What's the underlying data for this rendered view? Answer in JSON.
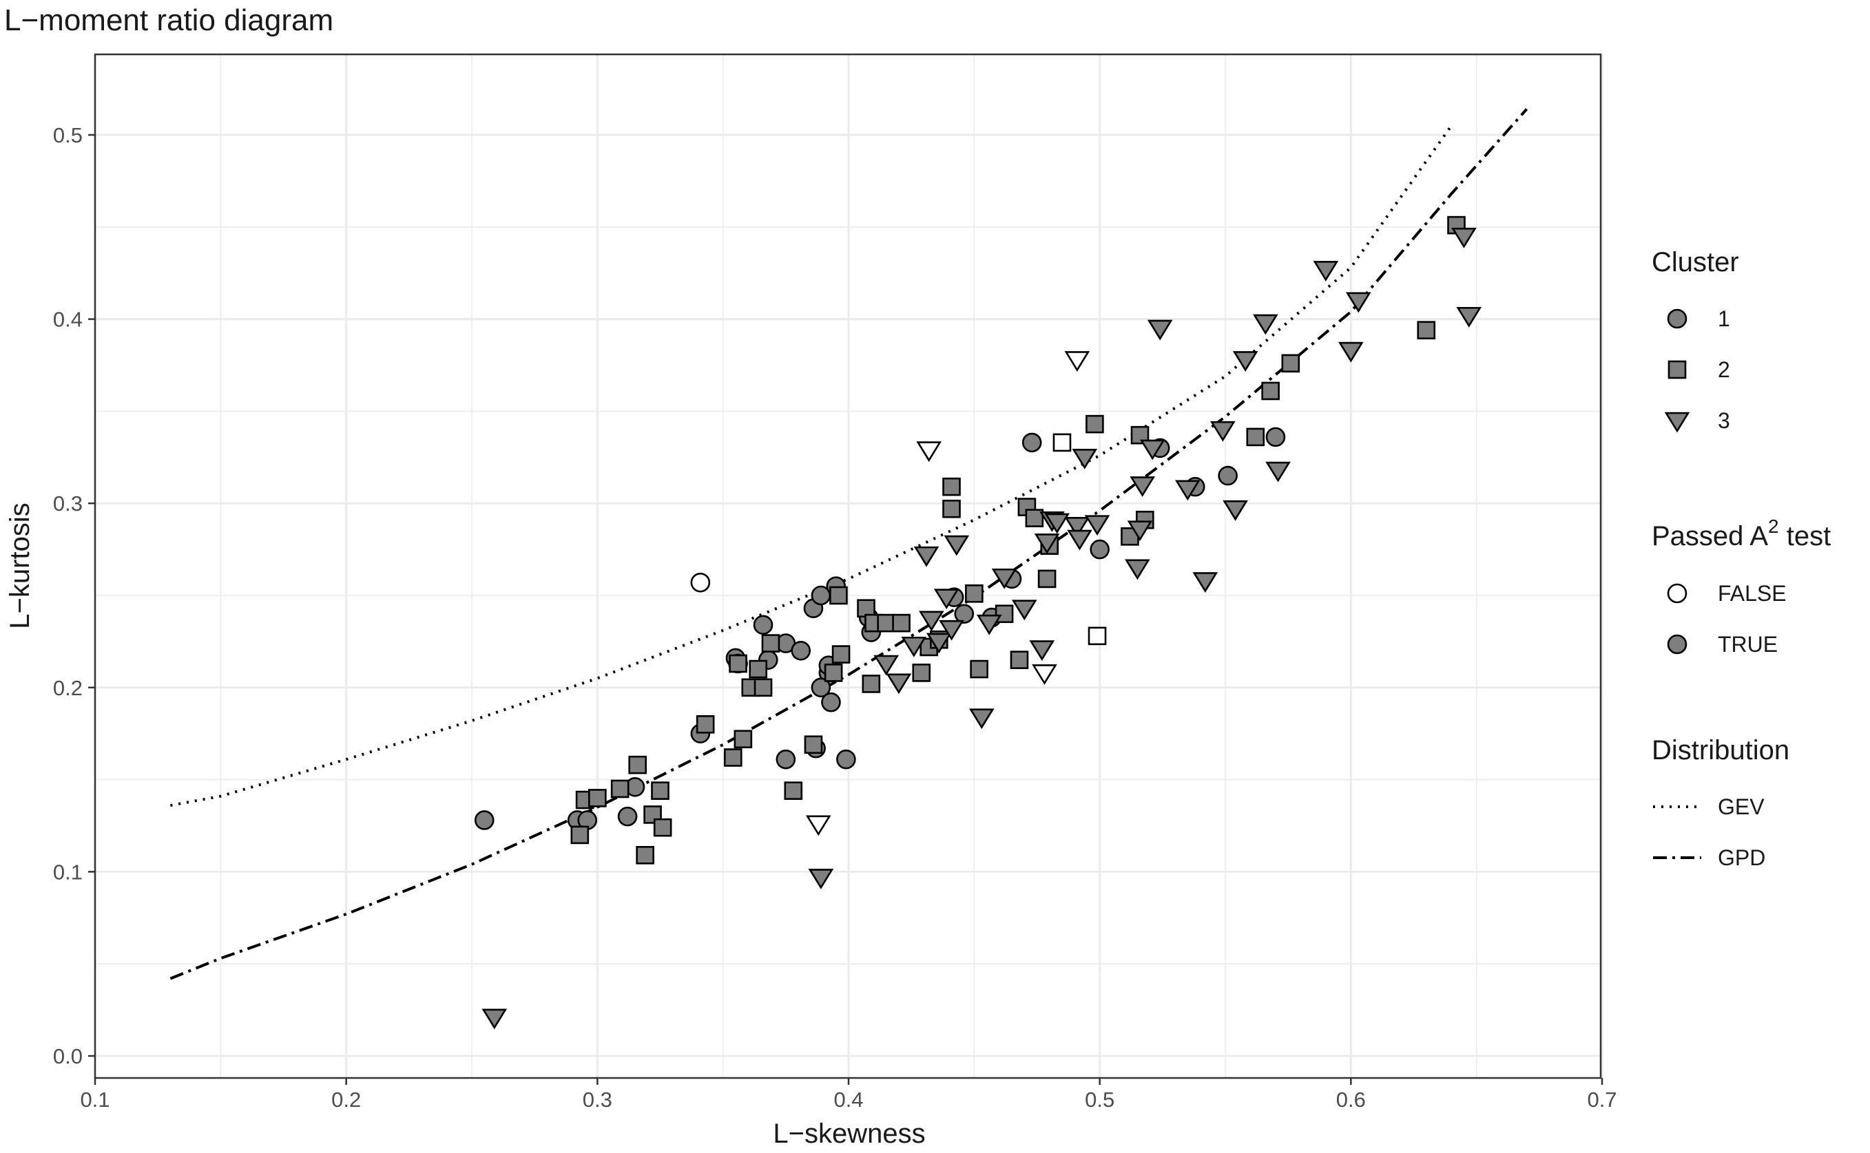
{
  "chart_data": {
    "type": "scatter",
    "title": "L−moment ratio diagram",
    "xlabel": "L−skewness",
    "ylabel": "L−kurtosis",
    "xlim": [
      0.1,
      0.7
    ],
    "ylim": [
      0.0,
      0.5
    ],
    "x_ticks": [
      "0.1",
      "0.2",
      "0.3",
      "0.4",
      "0.5",
      "0.6",
      "0.7"
    ],
    "y_ticks": [
      "0.0",
      "0.1",
      "0.2",
      "0.3",
      "0.4",
      "0.5"
    ],
    "grid": true,
    "legend_position": "right",
    "legend": {
      "cluster": {
        "title": "Cluster",
        "items": [
          {
            "label": "1",
            "shape": "circle"
          },
          {
            "label": "2",
            "shape": "square"
          },
          {
            "label": "3",
            "shape": "triangle-down"
          }
        ]
      },
      "passed": {
        "title_main": "Passed A",
        "title_sup": "2",
        "title_tail": " test",
        "items": [
          {
            "label": "FALSE",
            "fill": "#ffffff"
          },
          {
            "label": "TRUE",
            "fill": "#7f7f7f"
          }
        ]
      },
      "distribution": {
        "title": "Distribution",
        "items": [
          {
            "label": "GEV",
            "dash": "dotted"
          },
          {
            "label": "GPD",
            "dash": "dotdash"
          }
        ]
      }
    },
    "colors": {
      "filled": "#7f7f7f",
      "open": "#ffffff",
      "stroke": "#000000",
      "grid": "#ebebeb"
    },
    "curves": [
      {
        "name": "GEV",
        "dash": "dotted",
        "points": [
          [
            0.13,
            0.136
          ],
          [
            0.15,
            0.141
          ],
          [
            0.2,
            0.161
          ],
          [
            0.25,
            0.182
          ],
          [
            0.3,
            0.205
          ],
          [
            0.35,
            0.231
          ],
          [
            0.4,
            0.259
          ],
          [
            0.45,
            0.291
          ],
          [
            0.5,
            0.326
          ],
          [
            0.55,
            0.369
          ],
          [
            0.6,
            0.428
          ],
          [
            0.64,
            0.505
          ]
        ]
      },
      {
        "name": "GPD",
        "dash": "dotdash",
        "points": [
          [
            0.13,
            0.042
          ],
          [
            0.15,
            0.053
          ],
          [
            0.2,
            0.077
          ],
          [
            0.25,
            0.104
          ],
          [
            0.3,
            0.135
          ],
          [
            0.35,
            0.169
          ],
          [
            0.4,
            0.207
          ],
          [
            0.45,
            0.249
          ],
          [
            0.5,
            0.296
          ],
          [
            0.55,
            0.347
          ],
          [
            0.6,
            0.404
          ],
          [
            0.64,
            0.468
          ],
          [
            0.67,
            0.514
          ]
        ]
      }
    ],
    "series": [
      {
        "cluster": "1",
        "shape": "circle",
        "passed": true,
        "points": [
          [
            0.255,
            0.128
          ],
          [
            0.292,
            0.128
          ],
          [
            0.296,
            0.128
          ],
          [
            0.312,
            0.13
          ],
          [
            0.315,
            0.146
          ],
          [
            0.341,
            0.175
          ],
          [
            0.355,
            0.216
          ],
          [
            0.356,
            0.213
          ],
          [
            0.366,
            0.234
          ],
          [
            0.368,
            0.215
          ],
          [
            0.375,
            0.224
          ],
          [
            0.381,
            0.22
          ],
          [
            0.386,
            0.243
          ],
          [
            0.389,
            0.25
          ],
          [
            0.392,
            0.208
          ],
          [
            0.392,
            0.212
          ],
          [
            0.395,
            0.255
          ],
          [
            0.389,
            0.2
          ],
          [
            0.393,
            0.192
          ],
          [
            0.375,
            0.161
          ],
          [
            0.387,
            0.167
          ],
          [
            0.399,
            0.161
          ],
          [
            0.408,
            0.238
          ],
          [
            0.409,
            0.23
          ],
          [
            0.442,
            0.249
          ],
          [
            0.446,
            0.24
          ],
          [
            0.457,
            0.238
          ],
          [
            0.465,
            0.259
          ],
          [
            0.473,
            0.333
          ],
          [
            0.5,
            0.275
          ],
          [
            0.524,
            0.33
          ],
          [
            0.538,
            0.309
          ],
          [
            0.551,
            0.315
          ],
          [
            0.57,
            0.336
          ]
        ]
      },
      {
        "cluster": "1",
        "shape": "circle",
        "passed": false,
        "points": [
          [
            0.341,
            0.257
          ]
        ]
      },
      {
        "cluster": "2",
        "shape": "square",
        "passed": true,
        "points": [
          [
            0.293,
            0.12
          ],
          [
            0.295,
            0.139
          ],
          [
            0.3,
            0.14
          ],
          [
            0.309,
            0.145
          ],
          [
            0.316,
            0.158
          ],
          [
            0.319,
            0.109
          ],
          [
            0.322,
            0.131
          ],
          [
            0.325,
            0.144
          ],
          [
            0.326,
            0.124
          ],
          [
            0.343,
            0.18
          ],
          [
            0.354,
            0.162
          ],
          [
            0.356,
            0.213
          ],
          [
            0.358,
            0.172
          ],
          [
            0.361,
            0.2
          ],
          [
            0.364,
            0.21
          ],
          [
            0.366,
            0.2
          ],
          [
            0.369,
            0.224
          ],
          [
            0.378,
            0.144
          ],
          [
            0.386,
            0.169
          ],
          [
            0.394,
            0.208
          ],
          [
            0.396,
            0.25
          ],
          [
            0.397,
            0.218
          ],
          [
            0.407,
            0.243
          ],
          [
            0.409,
            0.202
          ],
          [
            0.41,
            0.235
          ],
          [
            0.415,
            0.235
          ],
          [
            0.421,
            0.235
          ],
          [
            0.429,
            0.208
          ],
          [
            0.432,
            0.222
          ],
          [
            0.436,
            0.226
          ],
          [
            0.441,
            0.309
          ],
          [
            0.441,
            0.297
          ],
          [
            0.45,
            0.251
          ],
          [
            0.452,
            0.21
          ],
          [
            0.462,
            0.24
          ],
          [
            0.468,
            0.215
          ],
          [
            0.471,
            0.298
          ],
          [
            0.474,
            0.292
          ],
          [
            0.479,
            0.259
          ],
          [
            0.48,
            0.277
          ],
          [
            0.498,
            0.343
          ],
          [
            0.512,
            0.282
          ],
          [
            0.516,
            0.337
          ],
          [
            0.518,
            0.291
          ],
          [
            0.562,
            0.336
          ],
          [
            0.568,
            0.361
          ],
          [
            0.576,
            0.376
          ],
          [
            0.63,
            0.394
          ],
          [
            0.642,
            0.451
          ]
        ]
      },
      {
        "cluster": "2",
        "shape": "square",
        "passed": false,
        "points": [
          [
            0.485,
            0.333
          ],
          [
            0.499,
            0.228
          ]
        ]
      },
      {
        "cluster": "3",
        "shape": "triangle-down",
        "passed": true,
        "points": [
          [
            0.259,
            0.021
          ],
          [
            0.389,
            0.097
          ],
          [
            0.415,
            0.213
          ],
          [
            0.42,
            0.203
          ],
          [
            0.426,
            0.223
          ],
          [
            0.431,
            0.272
          ],
          [
            0.433,
            0.237
          ],
          [
            0.436,
            0.225
          ],
          [
            0.439,
            0.249
          ],
          [
            0.441,
            0.232
          ],
          [
            0.443,
            0.278
          ],
          [
            0.453,
            0.184
          ],
          [
            0.456,
            0.235
          ],
          [
            0.462,
            0.26
          ],
          [
            0.47,
            0.243
          ],
          [
            0.477,
            0.221
          ],
          [
            0.479,
            0.279
          ],
          [
            0.481,
            0.291
          ],
          [
            0.483,
            0.29
          ],
          [
            0.491,
            0.288
          ],
          [
            0.492,
            0.281
          ],
          [
            0.494,
            0.325
          ],
          [
            0.499,
            0.289
          ],
          [
            0.515,
            0.265
          ],
          [
            0.516,
            0.286
          ],
          [
            0.517,
            0.31
          ],
          [
            0.521,
            0.33
          ],
          [
            0.524,
            0.395
          ],
          [
            0.535,
            0.308
          ],
          [
            0.542,
            0.258
          ],
          [
            0.549,
            0.34
          ],
          [
            0.554,
            0.297
          ],
          [
            0.558,
            0.378
          ],
          [
            0.566,
            0.398
          ],
          [
            0.571,
            0.318
          ],
          [
            0.59,
            0.427
          ],
          [
            0.6,
            0.383
          ],
          [
            0.603,
            0.41
          ],
          [
            0.645,
            0.445
          ],
          [
            0.647,
            0.402
          ]
        ]
      },
      {
        "cluster": "3",
        "shape": "triangle-down",
        "passed": false,
        "points": [
          [
            0.388,
            0.126
          ],
          [
            0.432,
            0.329
          ],
          [
            0.478,
            0.208
          ],
          [
            0.491,
            0.378
          ]
        ]
      }
    ]
  }
}
